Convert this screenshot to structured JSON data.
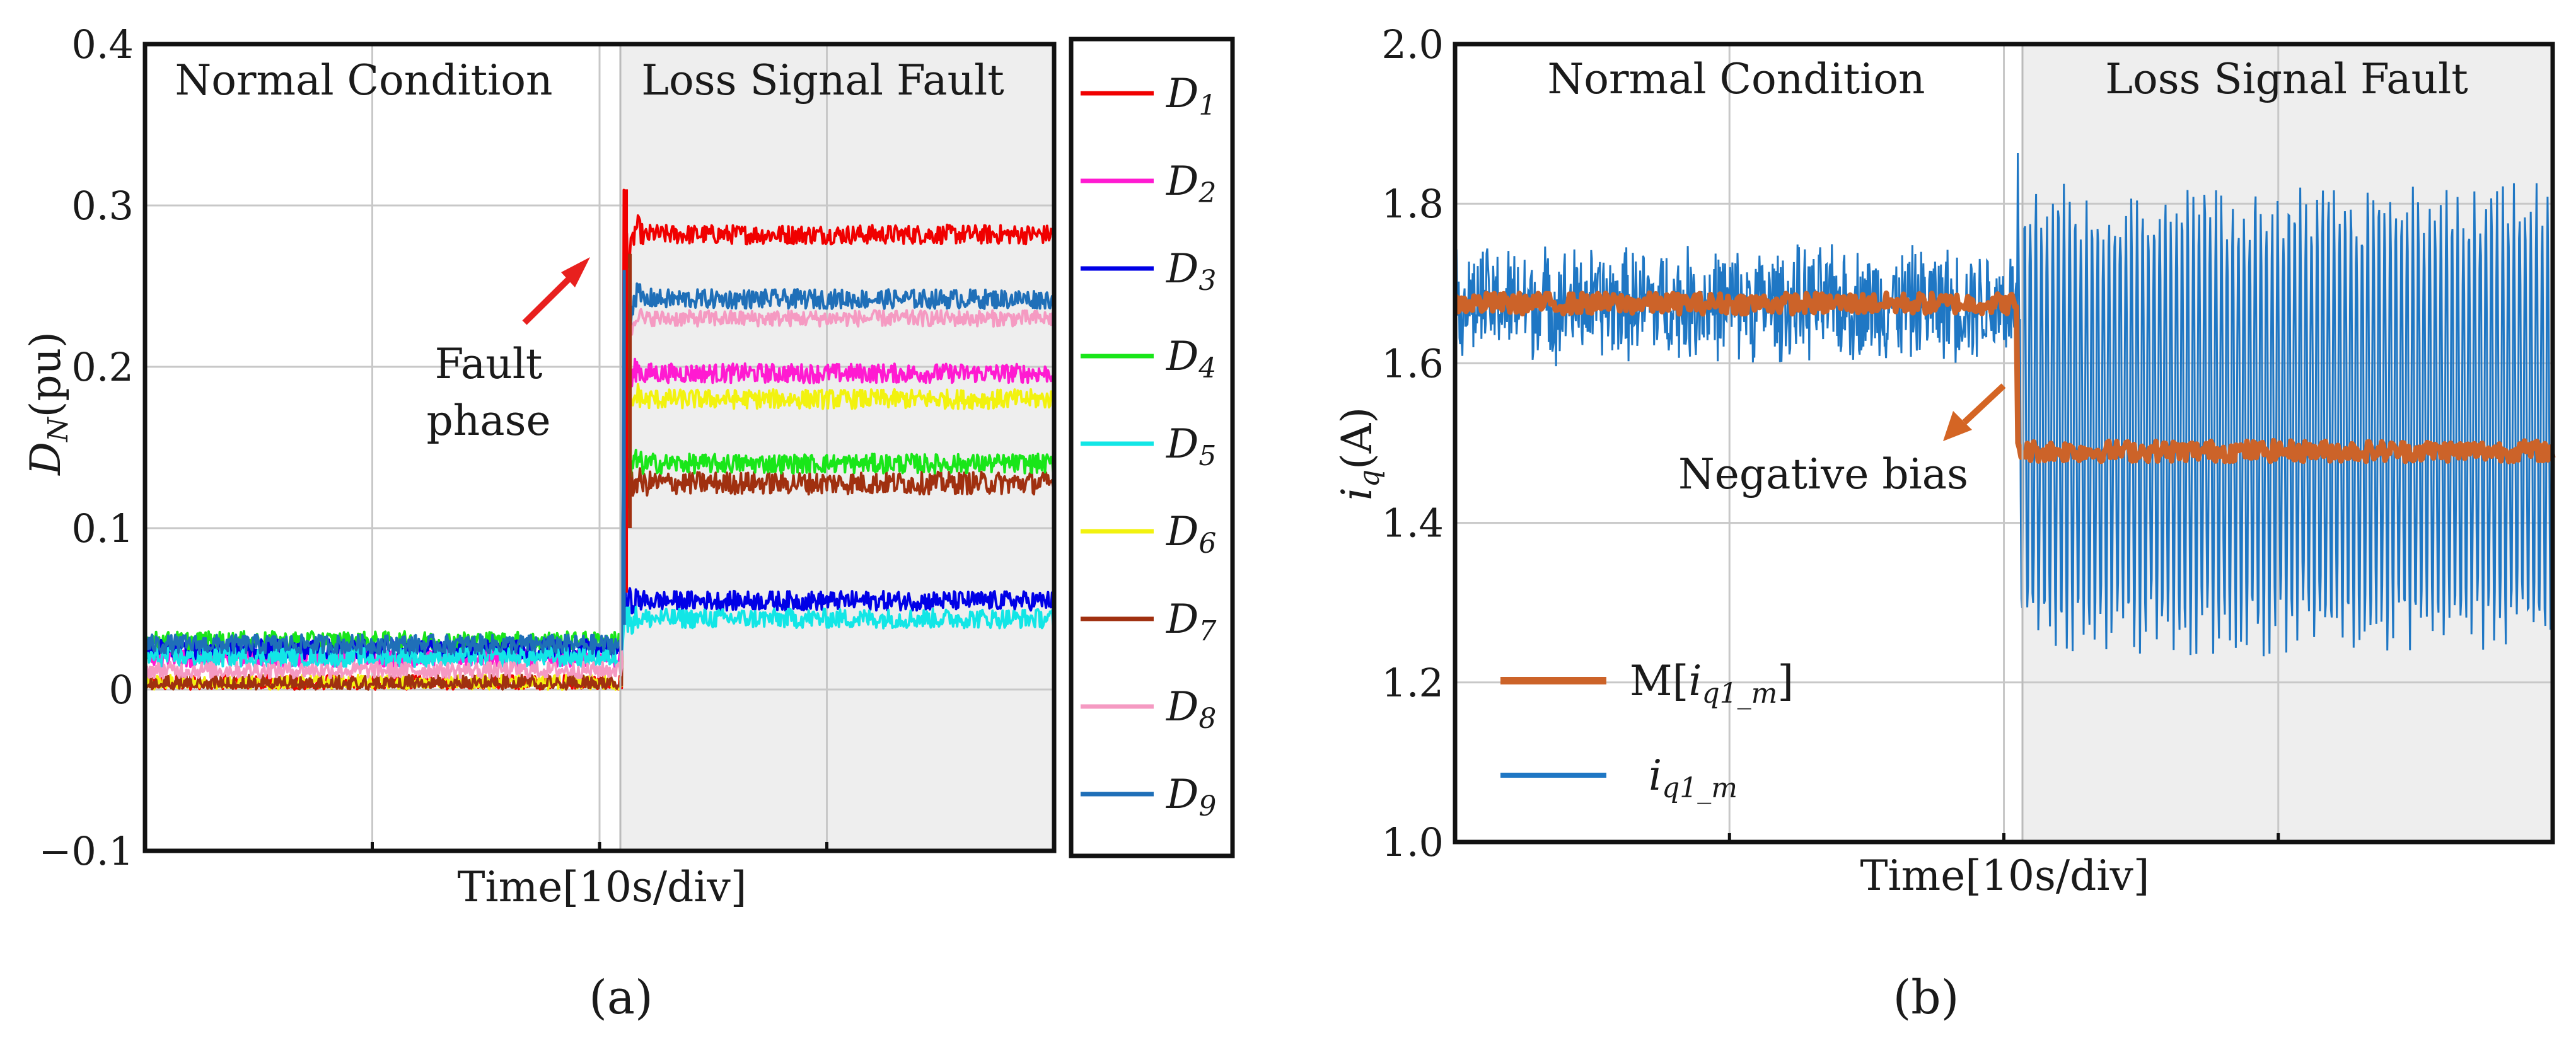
{
  "chart_data": [
    {
      "type": "line",
      "panel_label": "(a)",
      "title": "",
      "xlabel": "Time[10s/div]",
      "ylabel": "D_N(pu)",
      "ylabel_main": "D",
      "ylabel_sub": "N",
      "ylabel_unit": "(pu)",
      "ylim": [
        -0.1,
        0.4
      ],
      "yticks": [
        -0.1,
        0,
        0.1,
        0.2,
        0.3,
        0.4
      ],
      "ytick_labels": [
        "−0.1",
        "0",
        "0.1",
        "0.2",
        "0.3",
        "0.4"
      ],
      "x_range_s": [
        0,
        40
      ],
      "fault_time_s": 21,
      "grid": true,
      "legend_placement": "right-outside",
      "regions": [
        {
          "label": "Normal Condition",
          "from_s": 0,
          "to_s": 21
        },
        {
          "label": "Loss Signal Fault",
          "from_s": 21,
          "to_s": 40
        }
      ],
      "annotations": [
        {
          "text_line1": "Fault",
          "text_line2": "phase",
          "arrow_color": "#e8201e",
          "target": "fault-transient-peak"
        }
      ],
      "series": [
        {
          "name": "D1",
          "main": "D",
          "sub": "1",
          "color": "#f00000",
          "before": 0.003,
          "after": 0.282,
          "noise": 0.006
        },
        {
          "name": "D2",
          "main": "D",
          "sub": "2",
          "color": "#ff1ad1",
          "before": 0.02,
          "after": 0.196,
          "noise": 0.006
        },
        {
          "name": "D3",
          "main": "D",
          "sub": "3",
          "color": "#0000e6",
          "before": 0.025,
          "after": 0.055,
          "noise": 0.006
        },
        {
          "name": "D4",
          "main": "D",
          "sub": "4",
          "color": "#19e619",
          "before": 0.03,
          "after": 0.14,
          "noise": 0.006
        },
        {
          "name": "D5",
          "main": "D",
          "sub": "5",
          "color": "#12e6e6",
          "before": 0.02,
          "after": 0.044,
          "noise": 0.006
        },
        {
          "name": "D6",
          "main": "D",
          "sub": "6",
          "color": "#f2f20f",
          "before": 0.003,
          "after": 0.18,
          "noise": 0.006
        },
        {
          "name": "D7",
          "main": "D",
          "sub": "7",
          "color": "#a03010",
          "before": 0.002,
          "after": 0.128,
          "noise": 0.007
        },
        {
          "name": "D8",
          "main": "D",
          "sub": "8",
          "color": "#f59ac2",
          "before": 0.012,
          "after": 0.23,
          "noise": 0.005
        },
        {
          "name": "D9",
          "main": "D",
          "sub": "9",
          "color": "#1f6fb8",
          "before": 0.028,
          "after": 0.242,
          "noise": 0.006
        }
      ]
    },
    {
      "type": "line",
      "panel_label": "(b)",
      "title": "",
      "xlabel": "Time[10s/div]",
      "ylabel": "i_q(A)",
      "ylabel_main": "i",
      "ylabel_sub": "q",
      "ylabel_unit": "(A)",
      "ylim": [
        1.0,
        2.0
      ],
      "yticks": [
        1.0,
        1.2,
        1.4,
        1.6,
        1.8,
        2.0
      ],
      "ytick_labels": [
        "1.0",
        "1.2",
        "1.4",
        "1.6",
        "1.8",
        "2.0"
      ],
      "x_range_s": [
        0,
        40
      ],
      "fault_time_s": 20.5,
      "grid": true,
      "legend_placement": "bottom-left",
      "regions": [
        {
          "label": "Normal Condition",
          "from_s": 0,
          "to_s": 20.5
        },
        {
          "label": "Loss Signal Fault",
          "from_s": 20.5,
          "to_s": 40
        }
      ],
      "annotations": [
        {
          "text": "Negative bias",
          "arrow_color": "#d46524",
          "target": "mean-drop"
        }
      ],
      "series": [
        {
          "name": "i_q1_m",
          "legend_main": "i",
          "legend_sub": "q1_m",
          "color": "#1f77c4",
          "before": {
            "center": 1.675,
            "amp": 0.08
          },
          "after": {
            "center": 1.47,
            "amp": 0.3,
            "spike_max": 1.89
          }
        },
        {
          "name": "M[i_q1_m]",
          "legend_prefix": "M[",
          "legend_main": "i",
          "legend_sub": "q1_m",
          "legend_suffix": "]",
          "color": "#cc6329",
          "before": 1.675,
          "after": 1.49,
          "noise": 0.013
        }
      ]
    }
  ]
}
